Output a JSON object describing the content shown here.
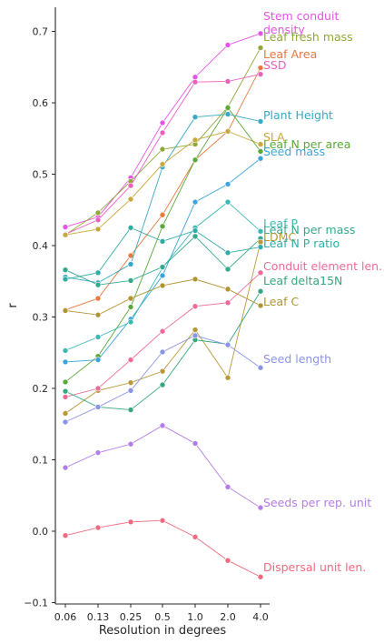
{
  "chart_data": {
    "type": "line",
    "title": "",
    "xlabel": "Resolution in degrees",
    "ylabel": "r",
    "categories": [
      "0.06",
      "0.13",
      "0.25",
      "0.5",
      "1.0",
      "2.0",
      "4.0"
    ],
    "ylim": [
      -0.1,
      0.73
    ],
    "yticks": [
      "−0.1",
      "0.0",
      "0.1",
      "0.2",
      "0.3",
      "0.4",
      "0.5",
      "0.6",
      "0.7"
    ],
    "ytick_values": [
      -0.1,
      0.0,
      0.1,
      0.2,
      0.3,
      0.4,
      0.5,
      0.6,
      0.7
    ],
    "grid": false,
    "legend": "inline labels at right end of lines",
    "series": [
      {
        "name": "Stem conduit density",
        "color": "#e654e6",
        "values": [
          0.426,
          0.44,
          0.495,
          0.572,
          0.636,
          0.681,
          0.697
        ]
      },
      {
        "name": "Leaf fresh mass",
        "color": "#8fa83a",
        "values": [
          0.415,
          0.446,
          0.49,
          0.535,
          0.542,
          0.594,
          0.677
        ]
      },
      {
        "name": "Leaf Area",
        "color": "#e8783c",
        "values": [
          0.31,
          0.326,
          0.386,
          0.443,
          0.52,
          0.56,
          0.649
        ]
      },
      {
        "name": "SSD",
        "color": "#ec60bd",
        "values": [
          0.416,
          0.436,
          0.484,
          0.558,
          0.629,
          0.63,
          0.64
        ]
      },
      {
        "name": "Plant Height",
        "color": "#38a8c4",
        "values": [
          0.356,
          0.348,
          0.374,
          0.51,
          0.58,
          0.584,
          0.574
        ]
      },
      {
        "name": "SLA",
        "color": "#c8a83c",
        "values": [
          0.415,
          0.423,
          0.465,
          0.514,
          0.548,
          0.56,
          0.542
        ]
      },
      {
        "name": "Leaf N per area",
        "color": "#5aa838",
        "values": [
          0.209,
          0.245,
          0.314,
          0.427,
          0.52,
          0.593,
          0.532
        ]
      },
      {
        "name": "Seed mass",
        "color": "#3ca4d8",
        "values": [
          0.237,
          0.24,
          0.297,
          0.358,
          0.461,
          0.486,
          0.522
        ]
      },
      {
        "name": "Leaf P",
        "color": "#3cb8b4",
        "values": [
          0.253,
          0.272,
          0.293,
          0.369,
          0.425,
          0.461,
          0.42
        ]
      },
      {
        "name": "Leaf N per mass",
        "color": "#34a88c",
        "values": [
          0.366,
          0.345,
          0.351,
          0.37,
          0.413,
          0.367,
          0.41
        ]
      },
      {
        "name": "LDMC",
        "color": "#b89838",
        "values": [
          0.165,
          0.197,
          0.208,
          0.224,
          0.282,
          0.215,
          0.405
        ]
      },
      {
        "name": "Leaf N P ratio",
        "color": "#30aca4",
        "values": [
          0.353,
          0.362,
          0.425,
          0.406,
          0.421,
          0.39,
          0.398
        ]
      },
      {
        "name": "Conduit element len.",
        "color": "#ee6a9a",
        "values": [
          0.188,
          0.2,
          0.24,
          0.28,
          0.315,
          0.32,
          0.362
        ]
      },
      {
        "name": "Leaf delta15N",
        "color": "#34a87c",
        "values": [
          0.196,
          0.174,
          0.17,
          0.205,
          0.268,
          0.262,
          0.336
        ]
      },
      {
        "name": "Leaf C",
        "color": "#b09430",
        "values": [
          0.309,
          0.303,
          0.326,
          0.344,
          0.353,
          0.339,
          0.316
        ]
      },
      {
        "name": "Seed length",
        "color": "#8a94e6",
        "values": [
          0.153,
          0.174,
          0.197,
          0.251,
          0.274,
          0.261,
          0.229
        ]
      },
      {
        "name": "Seeds per rep. unit",
        "color": "#b47ce8",
        "values": [
          0.089,
          0.11,
          0.122,
          0.148,
          0.123,
          0.062,
          0.033
        ]
      },
      {
        "name": "Dispersal unit len.",
        "color": "#f06a80",
        "values": [
          -0.006,
          0.005,
          0.013,
          0.015,
          -0.008,
          -0.041,
          -0.064
        ]
      }
    ],
    "series_labels": [
      {
        "lines": [
          "Stem conduit",
          "density"
        ],
        "color": "#e654e6"
      },
      {
        "lines": [
          "Leaf fresh mass"
        ],
        "color": "#8fa83a"
      },
      {
        "lines": [
          "Leaf Area"
        ],
        "color": "#e8783c"
      },
      {
        "lines": [
          "SSD"
        ],
        "color": "#ec60bd"
      },
      {
        "lines": [
          "Plant Height"
        ],
        "color": "#38a8c4"
      },
      {
        "lines": [
          "SLA"
        ],
        "color": "#c8a83c"
      },
      {
        "lines": [
          "Leaf N per area"
        ],
        "color": "#5aa838"
      },
      {
        "lines": [
          "Seed mass"
        ],
        "color": "#3ca4d8"
      },
      {
        "lines": [
          "Leaf P"
        ],
        "color": "#3cb8b4"
      },
      {
        "lines": [
          "Leaf N per mass"
        ],
        "color": "#34a88c"
      },
      {
        "lines": [
          "LDMC"
        ],
        "color": "#b89838"
      },
      {
        "lines": [
          "Leaf N P ratio"
        ],
        "color": "#30aca4"
      },
      {
        "lines": [
          "Conduit element len."
        ],
        "color": "#ee6a9a"
      },
      {
        "lines": [
          "Leaf delta15N"
        ],
        "color": "#34a87c"
      },
      {
        "lines": [
          "Leaf C"
        ],
        "color": "#b09430"
      },
      {
        "lines": [
          "Seed length"
        ],
        "color": "#8a94e6"
      },
      {
        "lines": [
          "Seeds per rep. unit"
        ],
        "color": "#b47ce8"
      },
      {
        "lines": [
          "Dispersal unit len."
        ],
        "color": "#f06a80"
      }
    ]
  }
}
